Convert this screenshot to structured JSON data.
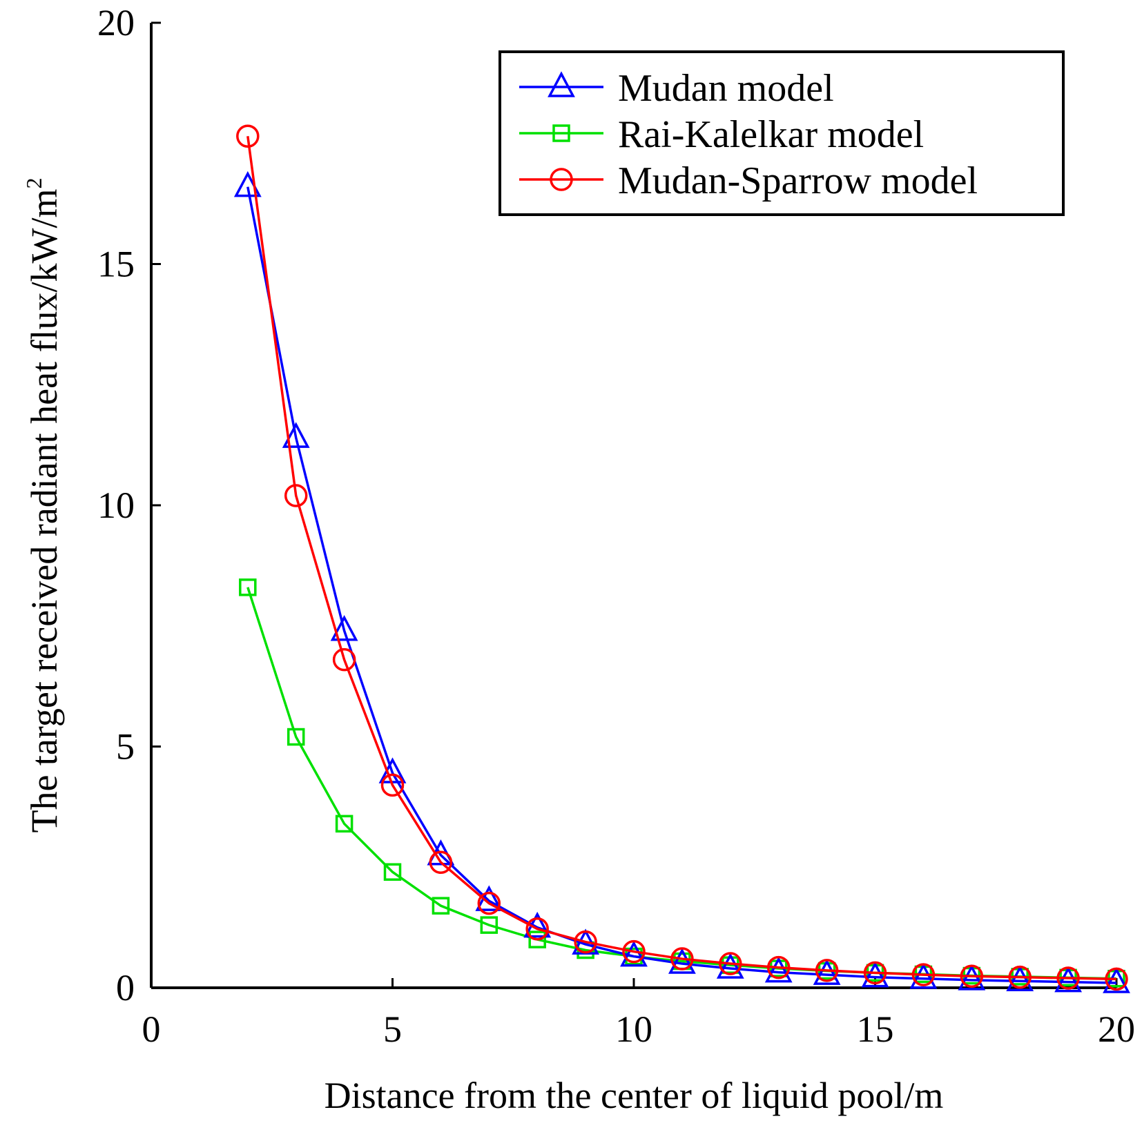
{
  "chart_data": {
    "type": "line",
    "title": "",
    "xlabel": "Distance from the center of liquid pool/m",
    "ylabel": "The target received radiant heat flux/kW/m",
    "ylabel_superscript": "2",
    "xlim": [
      0,
      20
    ],
    "ylim": [
      0,
      20
    ],
    "xticks": [
      "0",
      "5",
      "10",
      "15",
      "20"
    ],
    "yticks": [
      "0",
      "5",
      "10",
      "15",
      "20"
    ],
    "grid": false,
    "legend_position": "top-right",
    "x": [
      2,
      3,
      4,
      5,
      6,
      7,
      8,
      9,
      10,
      11,
      12,
      13,
      14,
      15,
      16,
      17,
      18,
      19,
      20
    ],
    "series": [
      {
        "name": "Mudan model",
        "color": "#0000ff",
        "marker": "triangle",
        "values": [
          16.6,
          11.4,
          7.4,
          4.45,
          2.75,
          1.8,
          1.25,
          0.9,
          0.65,
          0.5,
          0.4,
          0.32,
          0.27,
          0.22,
          0.19,
          0.16,
          0.14,
          0.12,
          0.1
        ]
      },
      {
        "name": "Rai-Kalelkar model",
        "color": "#00e000",
        "marker": "square",
        "values": [
          8.3,
          5.2,
          3.4,
          2.4,
          1.7,
          1.3,
          1.0,
          0.78,
          0.65,
          0.55,
          0.47,
          0.4,
          0.35,
          0.31,
          0.28,
          0.25,
          0.23,
          0.21,
          0.19
        ]
      },
      {
        "name": "Mudan-Sparrow model",
        "color": "#ff0000",
        "marker": "circle",
        "values": [
          17.65,
          10.2,
          6.8,
          4.2,
          2.6,
          1.75,
          1.22,
          0.95,
          0.75,
          0.6,
          0.5,
          0.42,
          0.36,
          0.31,
          0.27,
          0.24,
          0.22,
          0.2,
          0.18
        ]
      }
    ]
  }
}
